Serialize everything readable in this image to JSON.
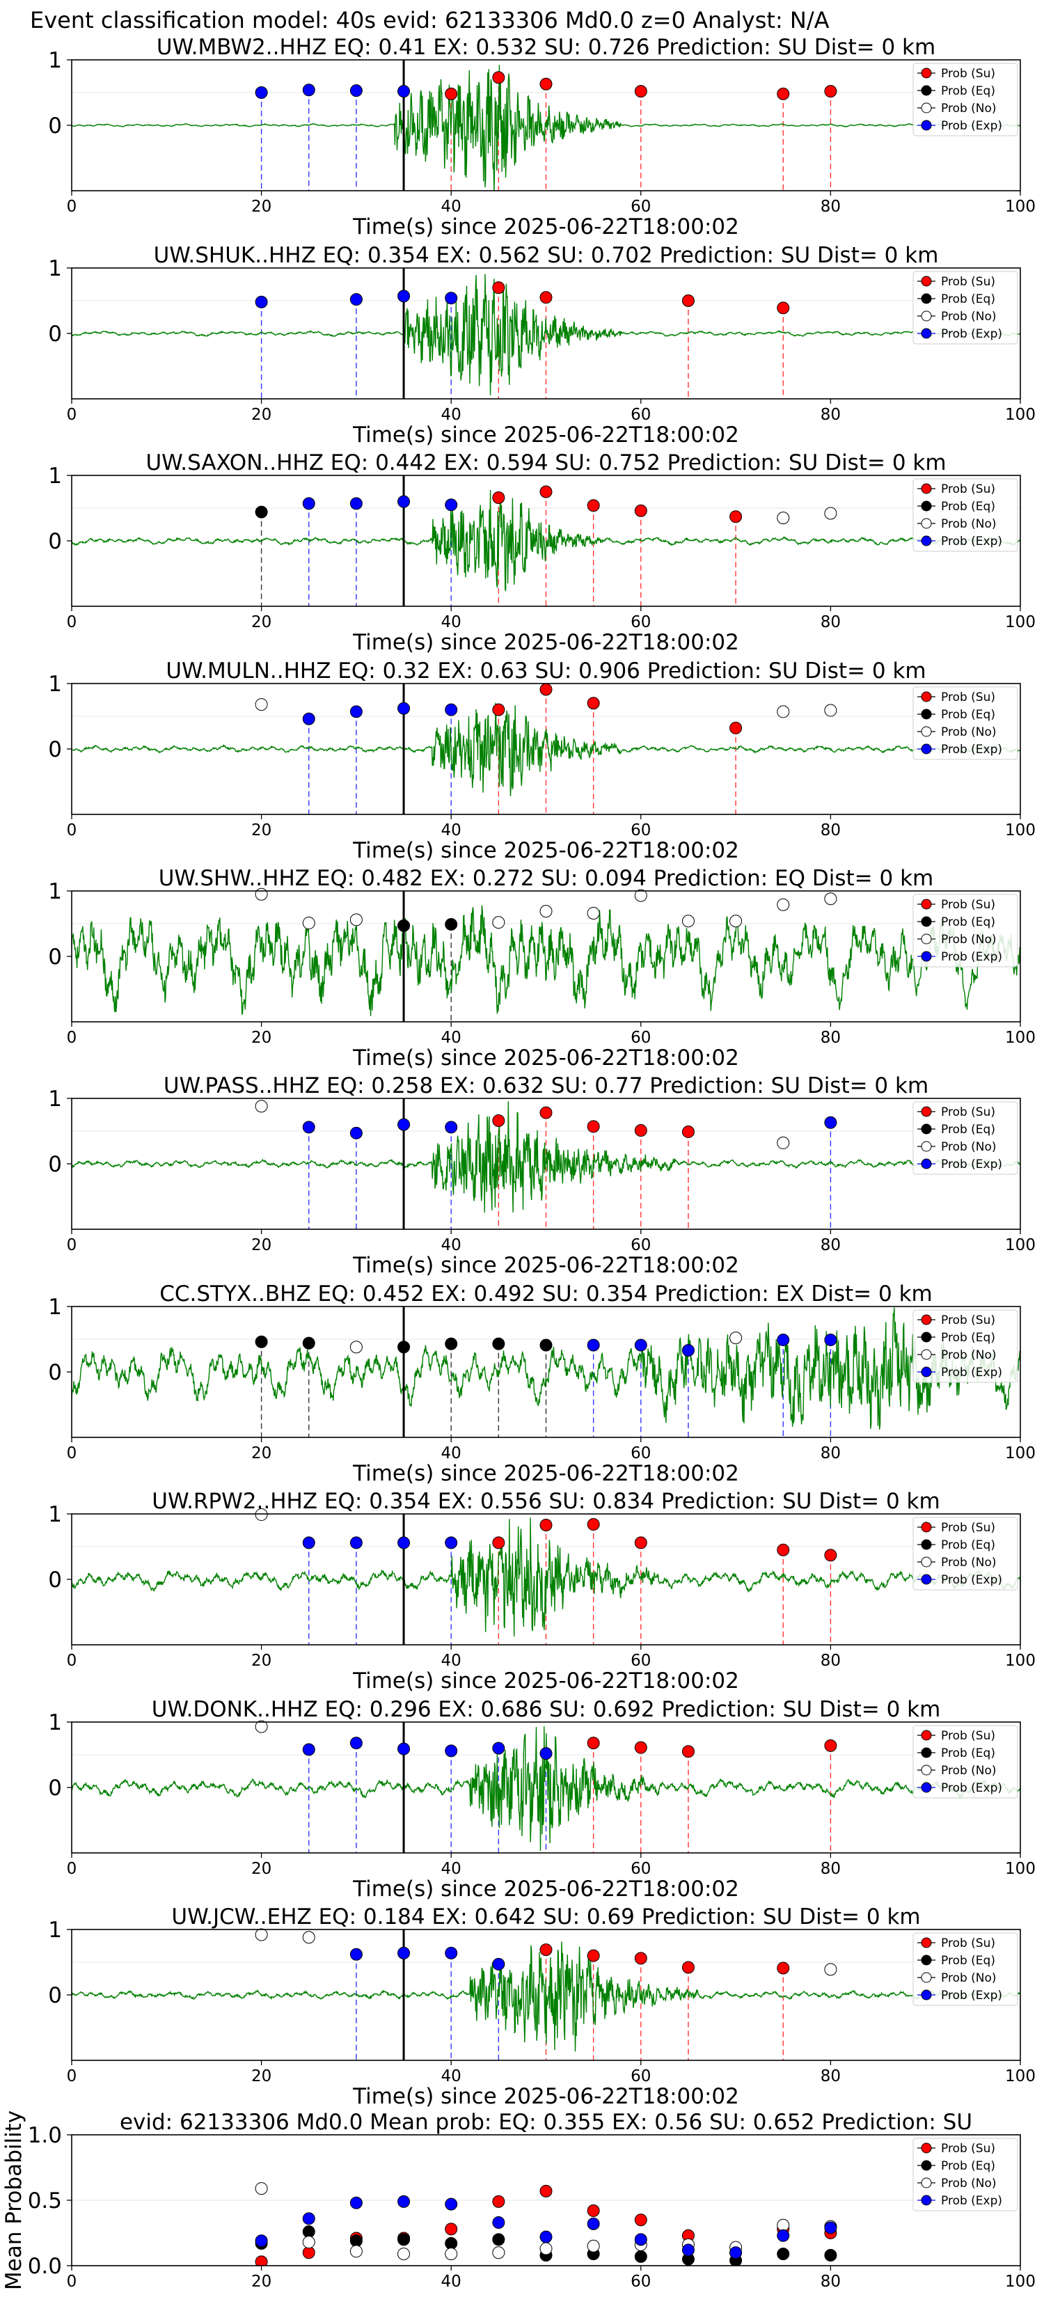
{
  "suptitle": "Event classification model: 40s evid: 62133306 Md0.0 z=0 Analyst: N/A",
  "colors": {
    "su": "#ff0000",
    "eq": "#000000",
    "no": "#ffffff",
    "exp": "#0000ff",
    "waveform": "#008000",
    "onset": "#000000"
  },
  "legend": [
    "Prob (Su)",
    "Prob (Eq)",
    "Prob (No)",
    "Prob (Exp)"
  ],
  "chart_data": [
    {
      "type": "line",
      "title": "UW.MBW2..HHZ   EQ: 0.41   EX: 0.532   SU: 0.726   Prediction: SU    Dist= 0 km",
      "xlabel": "Time(s) since 2025-06-22T18:00:02",
      "xlim": [
        0,
        100
      ],
      "ylim": [
        -1,
        1
      ],
      "xticks": [
        0,
        20,
        40,
        60,
        80,
        100
      ],
      "yticks": [
        0,
        1
      ],
      "onset": 35,
      "waveform_character": "quiet trace before ~34 s, strong burst 34-45 s decaying to ~55 s",
      "points": [
        {
          "x": 20,
          "y": 0.5,
          "cls": "exp"
        },
        {
          "x": 25,
          "y": 0.54,
          "cls": "exp"
        },
        {
          "x": 30,
          "y": 0.53,
          "cls": "exp"
        },
        {
          "x": 35,
          "y": 0.52,
          "cls": "exp"
        },
        {
          "x": 40,
          "y": 0.48,
          "cls": "su"
        },
        {
          "x": 45,
          "y": 0.73,
          "cls": "su"
        },
        {
          "x": 50,
          "y": 0.63,
          "cls": "su"
        },
        {
          "x": 60,
          "y": 0.52,
          "cls": "su"
        },
        {
          "x": 75,
          "y": 0.48,
          "cls": "su"
        },
        {
          "x": 80,
          "y": 0.52,
          "cls": "su"
        }
      ]
    },
    {
      "type": "line",
      "title": "UW.SHUK..HHZ   EQ: 0.354  EX: 0.562  SU: 0.702   Prediction: SU    Dist= 0 km",
      "xlabel": "Time(s) since 2025-06-22T18:00:02",
      "xlim": [
        0,
        100
      ],
      "ylim": [
        -1,
        1
      ],
      "xticks": [
        0,
        20,
        40,
        60,
        80,
        100
      ],
      "yticks": [
        0,
        1
      ],
      "onset": 35,
      "waveform_character": "low-frequency wiggle, burst 35-45 s decaying to ~55 s",
      "points": [
        {
          "x": 20,
          "y": 0.48,
          "cls": "exp"
        },
        {
          "x": 30,
          "y": 0.52,
          "cls": "exp"
        },
        {
          "x": 35,
          "y": 0.57,
          "cls": "exp"
        },
        {
          "x": 40,
          "y": 0.54,
          "cls": "exp"
        },
        {
          "x": 45,
          "y": 0.7,
          "cls": "su"
        },
        {
          "x": 50,
          "y": 0.55,
          "cls": "su"
        },
        {
          "x": 65,
          "y": 0.5,
          "cls": "su"
        },
        {
          "x": 75,
          "y": 0.39,
          "cls": "su"
        }
      ]
    },
    {
      "type": "line",
      "title": "UW.SAXON..HHZ   EQ: 0.442  EX: 0.594  SU: 0.752   Prediction: SU    Dist= 0 km",
      "xlabel": "Time(s) since 2025-06-22T18:00:02",
      "xlim": [
        0,
        100
      ],
      "ylim": [
        -1,
        1
      ],
      "xticks": [
        0,
        20,
        40,
        60,
        80,
        100
      ],
      "yticks": [
        0,
        1
      ],
      "onset": 35,
      "waveform_character": "noisy baseline, emergent burst 38-52 s",
      "points": [
        {
          "x": 20,
          "y": 0.44,
          "cls": "eq"
        },
        {
          "x": 25,
          "y": 0.57,
          "cls": "exp"
        },
        {
          "x": 30,
          "y": 0.57,
          "cls": "exp"
        },
        {
          "x": 35,
          "y": 0.6,
          "cls": "exp"
        },
        {
          "x": 40,
          "y": 0.55,
          "cls": "exp"
        },
        {
          "x": 45,
          "y": 0.66,
          "cls": "su"
        },
        {
          "x": 50,
          "y": 0.75,
          "cls": "su"
        },
        {
          "x": 55,
          "y": 0.54,
          "cls": "su"
        },
        {
          "x": 60,
          "y": 0.46,
          "cls": "su"
        },
        {
          "x": 70,
          "y": 0.37,
          "cls": "su"
        },
        {
          "x": 75,
          "y": 0.35,
          "cls": "no"
        },
        {
          "x": 80,
          "y": 0.42,
          "cls": "no"
        }
      ]
    },
    {
      "type": "line",
      "title": "UW.MULN..HHZ   EQ: 0.32   EX: 0.63   SU: 0.906   Prediction: SU    Dist= 0 km",
      "xlabel": "Time(s) since 2025-06-22T18:00:02",
      "xlim": [
        0,
        100
      ],
      "ylim": [
        -1,
        1
      ],
      "xticks": [
        0,
        20,
        40,
        60,
        80,
        100
      ],
      "yticks": [
        0,
        1
      ],
      "onset": 35,
      "waveform_character": "noisy baseline, burst 38-55 s",
      "points": [
        {
          "x": 20,
          "y": 0.68,
          "cls": "no"
        },
        {
          "x": 25,
          "y": 0.46,
          "cls": "exp"
        },
        {
          "x": 30,
          "y": 0.57,
          "cls": "exp"
        },
        {
          "x": 35,
          "y": 0.62,
          "cls": "exp"
        },
        {
          "x": 40,
          "y": 0.6,
          "cls": "exp"
        },
        {
          "x": 45,
          "y": 0.6,
          "cls": "su"
        },
        {
          "x": 50,
          "y": 0.91,
          "cls": "su"
        },
        {
          "x": 55,
          "y": 0.7,
          "cls": "su"
        },
        {
          "x": 70,
          "y": 0.32,
          "cls": "su"
        },
        {
          "x": 75,
          "y": 0.57,
          "cls": "no"
        },
        {
          "x": 80,
          "y": 0.59,
          "cls": "no"
        }
      ]
    },
    {
      "type": "line",
      "title": "UW.SHW..HHZ   EQ: 0.482  EX: 0.272  SU: 0.094   Prediction: EQ    Dist= 0 km",
      "xlabel": "Time(s) since 2025-06-22T18:00:02",
      "xlim": [
        0,
        100
      ],
      "ylim": [
        -1,
        1
      ],
      "xticks": [
        0,
        20,
        40,
        60,
        80,
        100
      ],
      "yticks": [
        0,
        1
      ],
      "onset": 35,
      "waveform_character": "large-amplitude long-period oscillation over whole window",
      "points": [
        {
          "x": 20,
          "y": 0.95,
          "cls": "no"
        },
        {
          "x": 25,
          "y": 0.51,
          "cls": "no"
        },
        {
          "x": 30,
          "y": 0.56,
          "cls": "no"
        },
        {
          "x": 35,
          "y": 0.47,
          "cls": "eq"
        },
        {
          "x": 40,
          "y": 0.49,
          "cls": "eq"
        },
        {
          "x": 45,
          "y": 0.52,
          "cls": "no"
        },
        {
          "x": 50,
          "y": 0.69,
          "cls": "no"
        },
        {
          "x": 55,
          "y": 0.66,
          "cls": "no"
        },
        {
          "x": 60,
          "y": 0.93,
          "cls": "no"
        },
        {
          "x": 65,
          "y": 0.54,
          "cls": "no"
        },
        {
          "x": 70,
          "y": 0.54,
          "cls": "no"
        },
        {
          "x": 75,
          "y": 0.79,
          "cls": "no"
        },
        {
          "x": 80,
          "y": 0.88,
          "cls": "no"
        }
      ]
    },
    {
      "type": "line",
      "title": "UW.PASS..HHZ   EQ: 0.258  EX: 0.632  SU: 0.77   Prediction: SU    Dist= 0 km",
      "xlabel": "Time(s) since 2025-06-22T18:00:02",
      "xlim": [
        0,
        100
      ],
      "ylim": [
        -1,
        1
      ],
      "xticks": [
        0,
        20,
        40,
        60,
        80,
        100
      ],
      "yticks": [
        0,
        1
      ],
      "onset": 35,
      "waveform_character": "noisy baseline, burst 38-62 s",
      "points": [
        {
          "x": 20,
          "y": 0.88,
          "cls": "no"
        },
        {
          "x": 25,
          "y": 0.56,
          "cls": "exp"
        },
        {
          "x": 30,
          "y": 0.47,
          "cls": "exp"
        },
        {
          "x": 35,
          "y": 0.6,
          "cls": "exp"
        },
        {
          "x": 40,
          "y": 0.56,
          "cls": "exp"
        },
        {
          "x": 45,
          "y": 0.66,
          "cls": "su"
        },
        {
          "x": 50,
          "y": 0.78,
          "cls": "su"
        },
        {
          "x": 55,
          "y": 0.57,
          "cls": "su"
        },
        {
          "x": 60,
          "y": 0.51,
          "cls": "su"
        },
        {
          "x": 65,
          "y": 0.49,
          "cls": "su"
        },
        {
          "x": 75,
          "y": 0.32,
          "cls": "no"
        },
        {
          "x": 80,
          "y": 0.63,
          "cls": "exp"
        }
      ]
    },
    {
      "type": "line",
      "title": "CC.STYX..BHZ   EQ: 0.452  EX: 0.492  SU: 0.354   Prediction: EX    Dist= 0 km",
      "xlabel": "Time(s) since 2025-06-22T18:00:02",
      "xlim": [
        0,
        100
      ],
      "ylim": [
        -1,
        1
      ],
      "xticks": [
        0,
        20,
        40,
        60,
        80,
        100
      ],
      "yticks": [
        0,
        1
      ],
      "onset": 35,
      "waveform_character": "irregular oscillation throughout, larger toward the end",
      "points": [
        {
          "x": 20,
          "y": 0.46,
          "cls": "eq"
        },
        {
          "x": 25,
          "y": 0.44,
          "cls": "eq"
        },
        {
          "x": 30,
          "y": 0.38,
          "cls": "no"
        },
        {
          "x": 35,
          "y": 0.38,
          "cls": "eq"
        },
        {
          "x": 40,
          "y": 0.43,
          "cls": "eq"
        },
        {
          "x": 45,
          "y": 0.43,
          "cls": "eq"
        },
        {
          "x": 50,
          "y": 0.41,
          "cls": "eq"
        },
        {
          "x": 55,
          "y": 0.41,
          "cls": "exp"
        },
        {
          "x": 60,
          "y": 0.41,
          "cls": "exp"
        },
        {
          "x": 65,
          "y": 0.33,
          "cls": "exp"
        },
        {
          "x": 70,
          "y": 0.52,
          "cls": "no"
        },
        {
          "x": 75,
          "y": 0.49,
          "cls": "exp"
        },
        {
          "x": 80,
          "y": 0.49,
          "cls": "exp"
        }
      ]
    },
    {
      "type": "line",
      "title": "UW.RPW2..HHZ   EQ: 0.354  EX: 0.556  SU: 0.834   Prediction: SU    Dist= 0 km",
      "xlabel": "Time(s) since 2025-06-22T18:00:02",
      "xlim": [
        0,
        100
      ],
      "ylim": [
        -1,
        1
      ],
      "xticks": [
        0,
        20,
        40,
        60,
        80,
        100
      ],
      "yticks": [
        0,
        1
      ],
      "onset": 35,
      "waveform_character": "long-period wiggle then strong burst 40-60 s",
      "points": [
        {
          "x": 20,
          "y": 0.99,
          "cls": "no"
        },
        {
          "x": 25,
          "y": 0.56,
          "cls": "exp"
        },
        {
          "x": 30,
          "y": 0.56,
          "cls": "exp"
        },
        {
          "x": 35,
          "y": 0.56,
          "cls": "exp"
        },
        {
          "x": 40,
          "y": 0.56,
          "cls": "exp"
        },
        {
          "x": 45,
          "y": 0.56,
          "cls": "su"
        },
        {
          "x": 50,
          "y": 0.83,
          "cls": "su"
        },
        {
          "x": 55,
          "y": 0.84,
          "cls": "su"
        },
        {
          "x": 60,
          "y": 0.56,
          "cls": "su"
        },
        {
          "x": 75,
          "y": 0.45,
          "cls": "su"
        },
        {
          "x": 80,
          "y": 0.37,
          "cls": "su"
        }
      ]
    },
    {
      "type": "line",
      "title": "UW.DONK..HHZ   EQ: 0.296  EX: 0.686  SU: 0.692   Prediction: SU    Dist= 0 km",
      "xlabel": "Time(s) since 2025-06-22T18:00:02",
      "xlim": [
        0,
        100
      ],
      "ylim": [
        -1,
        1
      ],
      "xticks": [
        0,
        20,
        40,
        60,
        80,
        100
      ],
      "yticks": [
        0,
        1
      ],
      "onset": 35,
      "waveform_character": "long-period wiggle then burst 42-60 s",
      "points": [
        {
          "x": 20,
          "y": 0.93,
          "cls": "no"
        },
        {
          "x": 25,
          "y": 0.58,
          "cls": "exp"
        },
        {
          "x": 30,
          "y": 0.68,
          "cls": "exp"
        },
        {
          "x": 35,
          "y": 0.59,
          "cls": "exp"
        },
        {
          "x": 40,
          "y": 0.56,
          "cls": "exp"
        },
        {
          "x": 45,
          "y": 0.6,
          "cls": "exp"
        },
        {
          "x": 50,
          "y": 0.52,
          "cls": "exp"
        },
        {
          "x": 55,
          "y": 0.68,
          "cls": "su"
        },
        {
          "x": 60,
          "y": 0.61,
          "cls": "su"
        },
        {
          "x": 65,
          "y": 0.55,
          "cls": "su"
        },
        {
          "x": 80,
          "y": 0.64,
          "cls": "su"
        }
      ]
    },
    {
      "type": "line",
      "title": "UW.JCW..EHZ   EQ: 0.184  EX: 0.642  SU: 0.69   Prediction: SU    Dist= 0 km",
      "xlabel": "Time(s) since 2025-06-22T18:00:02",
      "xlim": [
        0,
        100
      ],
      "ylim": [
        -1,
        1
      ],
      "xticks": [
        0,
        20,
        40,
        60,
        80,
        100
      ],
      "yticks": [
        0,
        1
      ],
      "onset": 35,
      "waveform_character": "noisy baseline, burst 42-65 s",
      "points": [
        {
          "x": 20,
          "y": 0.92,
          "cls": "no"
        },
        {
          "x": 25,
          "y": 0.88,
          "cls": "no"
        },
        {
          "x": 30,
          "y": 0.62,
          "cls": "exp"
        },
        {
          "x": 35,
          "y": 0.64,
          "cls": "exp"
        },
        {
          "x": 40,
          "y": 0.64,
          "cls": "exp"
        },
        {
          "x": 45,
          "y": 0.47,
          "cls": "exp"
        },
        {
          "x": 50,
          "y": 0.69,
          "cls": "su"
        },
        {
          "x": 55,
          "y": 0.6,
          "cls": "su"
        },
        {
          "x": 60,
          "y": 0.56,
          "cls": "su"
        },
        {
          "x": 65,
          "y": 0.42,
          "cls": "su"
        },
        {
          "x": 75,
          "y": 0.41,
          "cls": "su"
        },
        {
          "x": 80,
          "y": 0.39,
          "cls": "no"
        }
      ]
    },
    {
      "type": "scatter",
      "title": "evid: 62133306  Md0.0   Mean prob:    EQ: 0.355  EX: 0.56  SU: 0.652   Prediction: SU",
      "ylabel": "Mean Probability",
      "xlim": [
        0,
        100
      ],
      "ylim": [
        0,
        1
      ],
      "xticks": [
        0,
        20,
        40,
        60,
        80,
        100
      ],
      "yticks": [
        0.0,
        0.5,
        1.0
      ],
      "series": [
        {
          "name": "Prob (Su)",
          "cls": "su",
          "x": [
            20,
            25,
            30,
            35,
            40,
            45,
            50,
            55,
            60,
            65,
            70,
            75,
            80
          ],
          "values": [
            0.03,
            0.1,
            0.21,
            0.21,
            0.28,
            0.49,
            0.57,
            0.42,
            0.35,
            0.23,
            0.1,
            0.28,
            0.25
          ]
        },
        {
          "name": "Prob (Eq)",
          "cls": "eq",
          "x": [
            20,
            25,
            30,
            35,
            40,
            45,
            50,
            55,
            60,
            65,
            70,
            75,
            80
          ],
          "values": [
            0.17,
            0.26,
            0.19,
            0.2,
            0.17,
            0.2,
            0.08,
            0.09,
            0.07,
            0.05,
            0.04,
            0.09,
            0.08
          ]
        },
        {
          "name": "Prob (No)",
          "cls": "no",
          "x": [
            20,
            25,
            30,
            35,
            40,
            45,
            50,
            55,
            60,
            65,
            70,
            75,
            80
          ],
          "values": [
            0.59,
            0.18,
            0.11,
            0.09,
            0.09,
            0.1,
            0.13,
            0.15,
            0.16,
            0.16,
            0.14,
            0.31,
            0.3
          ]
        },
        {
          "name": "Prob (Exp)",
          "cls": "exp",
          "x": [
            20,
            25,
            30,
            35,
            40,
            45,
            50,
            55,
            60,
            65,
            70,
            75,
            80
          ],
          "values": [
            0.19,
            0.36,
            0.48,
            0.49,
            0.47,
            0.33,
            0.22,
            0.32,
            0.2,
            0.12,
            0.1,
            0.23,
            0.29
          ]
        }
      ]
    }
  ]
}
